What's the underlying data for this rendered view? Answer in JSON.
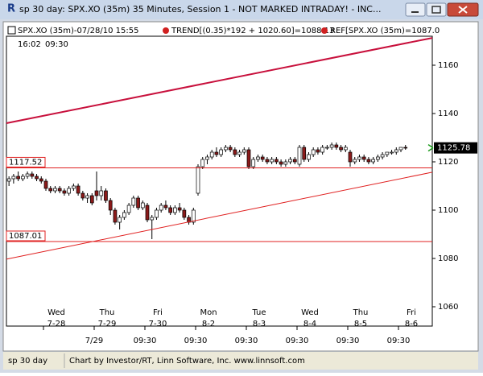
{
  "window": {
    "title": "sp 30 day: SPX.XO (35m) 35 Minutes, Session 1 - NOT MARKED INTRADAY! - INC...",
    "status": "sp 30 day",
    "credit": "Chart by Investor/RT, Linn Software, Inc. www.linnsoft.com"
  },
  "chart_data": {
    "type": "candlestick",
    "legend": [
      "SPX.XO (35m)-07/28/10 15:55",
      "TREND[(0.35)*192 + 1020.60]=1088.13",
      "REF[SPX.XO (35m)=1087.0"
    ],
    "clock": "16:02",
    "clock_session": "09:30",
    "ylim": [
      1052,
      1172
    ],
    "yticks": [
      1060,
      1080,
      1100,
      1120,
      1140,
      1160
    ],
    "up_color": "#ffffff",
    "down_color": "#8b1a1a",
    "days": [
      {
        "weekday": null,
        "date": null,
        "time_label": null,
        "candles": [
          [
            1112,
            1114,
            1110,
            1113
          ],
          [
            1113,
            1115,
            1111,
            1114
          ],
          [
            1114,
            1116,
            1112,
            1113
          ],
          [
            1113,
            1115,
            1112,
            1114
          ],
          [
            1114,
            1116,
            1113,
            1115
          ],
          [
            1115,
            1116,
            1113,
            1114
          ],
          [
            1114,
            1115,
            1112,
            1113
          ],
          [
            1113,
            1114,
            1111,
            1112
          ]
        ]
      },
      {
        "weekday": "Wed",
        "date": "7-28",
        "time_label": null,
        "candles": [
          [
            1112,
            1113,
            1108,
            1109
          ],
          [
            1109,
            1110,
            1107,
            1108
          ],
          [
            1108,
            1110,
            1107,
            1109
          ],
          [
            1109,
            1110,
            1107,
            1108
          ],
          [
            1108,
            1109,
            1106,
            1107
          ],
          [
            1107,
            1110,
            1106,
            1109
          ],
          [
            1109,
            1111,
            1108,
            1110
          ],
          [
            1110,
            1111,
            1106,
            1107
          ],
          [
            1107,
            1108,
            1104,
            1105
          ],
          [
            1105,
            1107,
            1103,
            1106
          ],
          [
            1106,
            1107,
            1102,
            1103
          ]
        ]
      },
      {
        "weekday": "Thu",
        "date": "7-29",
        "time_label": "7/29",
        "candles": [
          [
            1108,
            1116,
            1104,
            1106
          ],
          [
            1106,
            1110,
            1104,
            1108
          ],
          [
            1108,
            1109,
            1103,
            1104
          ],
          [
            1104,
            1105,
            1098,
            1100
          ],
          [
            1100,
            1101,
            1094,
            1095
          ],
          [
            1095,
            1098,
            1092,
            1097
          ],
          [
            1097,
            1100,
            1096,
            1099
          ],
          [
            1099,
            1103,
            1098,
            1102
          ],
          [
            1102,
            1106,
            1101,
            1105
          ],
          [
            1105,
            1106,
            1100,
            1101
          ],
          [
            1101,
            1104,
            1100,
            1103
          ]
        ]
      },
      {
        "weekday": "Fri",
        "date": "7-30",
        "time_label": "09:30",
        "candles": [
          [
            1102,
            1103,
            1095,
            1096
          ],
          [
            1096,
            1098,
            1088,
            1097
          ],
          [
            1097,
            1101,
            1096,
            1100
          ],
          [
            1100,
            1103,
            1099,
            1102
          ],
          [
            1102,
            1104,
            1100,
            1101
          ],
          [
            1101,
            1102,
            1098,
            1099
          ],
          [
            1099,
            1102,
            1098,
            1101
          ],
          [
            1101,
            1103,
            1099,
            1100
          ],
          [
            1100,
            1101,
            1096,
            1097
          ],
          [
            1097,
            1098,
            1094,
            1095
          ],
          [
            1095,
            1101,
            1094,
            1100
          ]
        ]
      },
      {
        "weekday": "Mon",
        "date": "8-2",
        "time_label": "09:30",
        "candles": [
          [
            1107,
            1119,
            1106,
            1118
          ],
          [
            1118,
            1122,
            1117,
            1121
          ],
          [
            1121,
            1123,
            1119,
            1122
          ],
          [
            1122,
            1125,
            1121,
            1124
          ],
          [
            1124,
            1126,
            1122,
            1123
          ],
          [
            1123,
            1126,
            1122,
            1125
          ],
          [
            1125,
            1127,
            1124,
            1126
          ],
          [
            1126,
            1127,
            1124,
            1125
          ],
          [
            1125,
            1126,
            1122,
            1123
          ],
          [
            1123,
            1125,
            1122,
            1124
          ],
          [
            1124,
            1126,
            1123,
            1125
          ]
        ]
      },
      {
        "weekday": "Tue",
        "date": "8-3",
        "time_label": "09:30",
        "candles": [
          [
            1125,
            1126,
            1117,
            1118
          ],
          [
            1118,
            1122,
            1117,
            1121
          ],
          [
            1121,
            1123,
            1120,
            1122
          ],
          [
            1122,
            1123,
            1120,
            1121
          ],
          [
            1121,
            1122,
            1119,
            1120
          ],
          [
            1120,
            1122,
            1119,
            1121
          ],
          [
            1121,
            1122,
            1119,
            1120
          ],
          [
            1120,
            1121,
            1118,
            1119
          ],
          [
            1119,
            1121,
            1118,
            1120
          ],
          [
            1120,
            1122,
            1119,
            1121
          ],
          [
            1121,
            1122,
            1119,
            1120
          ]
        ]
      },
      {
        "weekday": "Wed",
        "date": "8-4",
        "time_label": "09:30",
        "candles": [
          [
            1119,
            1127,
            1118,
            1126
          ],
          [
            1126,
            1127,
            1120,
            1121
          ],
          [
            1121,
            1124,
            1120,
            1123
          ],
          [
            1123,
            1126,
            1122,
            1125
          ],
          [
            1125,
            1126,
            1123,
            1124
          ],
          [
            1124,
            1127,
            1123,
            1126
          ],
          [
            1126,
            1127,
            1125,
            1126
          ],
          [
            1126,
            1128,
            1125,
            1127
          ],
          [
            1127,
            1128,
            1125,
            1126
          ],
          [
            1126,
            1127,
            1124,
            1125
          ],
          [
            1125,
            1127,
            1124,
            1126
          ]
        ]
      },
      {
        "weekday": "Thu",
        "date": "8-5",
        "time_label": "09:30",
        "candles": [
          [
            1124,
            1125,
            1118,
            1120
          ],
          [
            1120,
            1122,
            1119,
            1121
          ],
          [
            1121,
            1123,
            1120,
            1122
          ],
          [
            1122,
            1123,
            1120,
            1121
          ],
          [
            1121,
            1122,
            1119,
            1120
          ],
          [
            1120,
            1122,
            1119,
            1121
          ],
          [
            1121,
            1123,
            1120,
            1122
          ],
          [
            1122,
            1124,
            1121,
            1123
          ],
          [
            1123,
            1124,
            1122,
            1124
          ],
          [
            1124,
            1125,
            1123,
            1124
          ],
          [
            1124,
            1126,
            1123,
            1125
          ]
        ]
      },
      {
        "weekday": "Fri",
        "date": "8-6",
        "time_label": "09:30",
        "candles": [
          [
            1125,
            1126,
            1124,
            1126
          ],
          [
            1126,
            1127,
            1125,
            1125.78
          ]
        ]
      }
    ],
    "levels": [
      {
        "value": 1117.52,
        "label": "1117.52"
      },
      {
        "value": 1087.01,
        "label": "1087.01"
      }
    ],
    "trendlines": [
      {
        "start": 1136,
        "end": 1171.3,
        "color": "#c8103c"
      },
      {
        "start": 1079.7,
        "end": 1115.7,
        "color": "#e02020"
      }
    ],
    "last_price": 1125.78
  }
}
